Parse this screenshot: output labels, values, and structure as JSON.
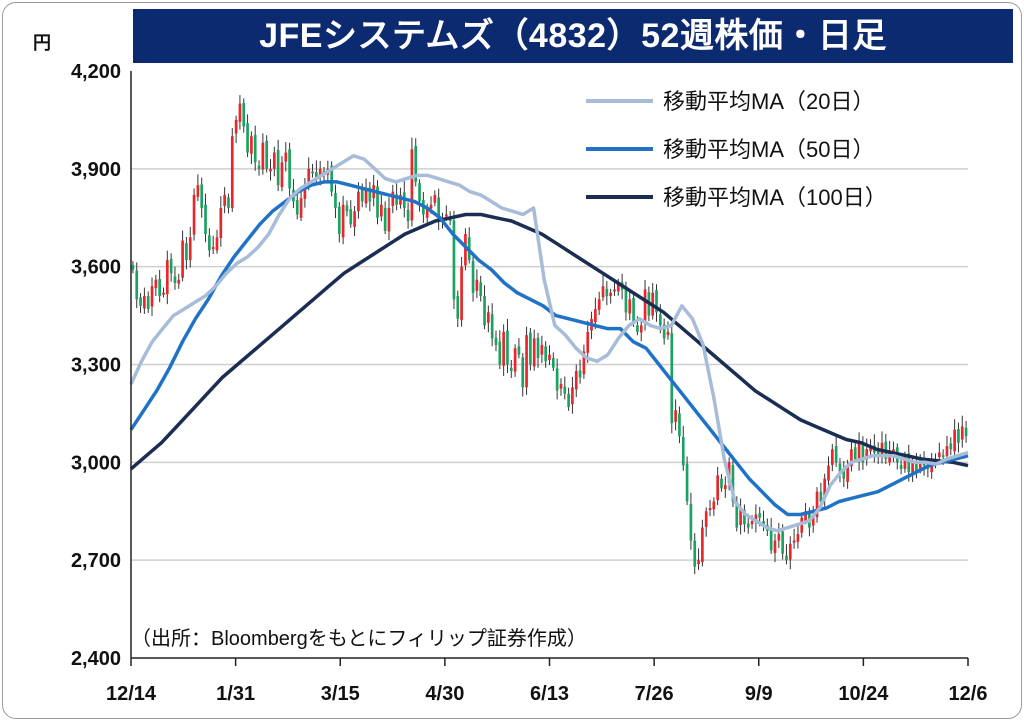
{
  "title": "JFEシステムズ（4832）52週株価・日足",
  "unit_label": "円",
  "source_note": "（出所：Bloombergをもとにフィリップ証券作成）",
  "colors": {
    "title_bg": "#0b2a6f",
    "up": "#e8262b",
    "down": "#1aa262",
    "ma20": "#a7bcd8",
    "ma50": "#1f72c6",
    "ma100": "#1a2d52",
    "grid": "#cfcfcf"
  },
  "chart_data": {
    "type": "candlestick",
    "title": "JFEシステムズ（4832）52週株価・日足",
    "ylabel": "円",
    "ylim": [
      2400,
      4200
    ],
    "yticks": [
      4200,
      3900,
      3600,
      3300,
      3000,
      2700,
      2400
    ],
    "ytick_labels": [
      "4,200",
      "3,900",
      "3,600",
      "3,300",
      "3,000",
      "2,700",
      "2,400"
    ],
    "xticks": [
      "12/14",
      "1/31",
      "3/15",
      "4/30",
      "6/13",
      "7/26",
      "9/9",
      "10/24",
      "12/6"
    ],
    "grid": true,
    "legend_position": "top-right",
    "legend": [
      "移動平均MA（20日）",
      "移動平均MA（50日）",
      "移動平均MA（100日）"
    ],
    "close": [
      3590,
      3500,
      3480,
      3510,
      3470,
      3540,
      3560,
      3510,
      3520,
      3620,
      3580,
      3550,
      3560,
      3680,
      3620,
      3690,
      3820,
      3850,
      3780,
      3700,
      3650,
      3660,
      3690,
      3780,
      3820,
      3780,
      4000,
      4050,
      4100,
      4030,
      3950,
      4000,
      3920,
      3900,
      3980,
      3900,
      3900,
      3950,
      3850,
      3920,
      3950,
      3840,
      3800,
      3760,
      3810,
      3850,
      3900,
      3890,
      3870,
      3900,
      3880,
      3900,
      3830,
      3780,
      3700,
      3790,
      3770,
      3730,
      3770,
      3830,
      3800,
      3840,
      3800,
      3850,
      3750,
      3790,
      3710,
      3780,
      3830,
      3790,
      3820,
      3780,
      3740,
      3960,
      3860,
      3800,
      3760,
      3780,
      3790,
      3820,
      3740,
      3750,
      3760,
      3740,
      3500,
      3440,
      3600,
      3700,
      3620,
      3520,
      3560,
      3510,
      3420,
      3460,
      3380,
      3360,
      3300,
      3400,
      3300,
      3280,
      3350,
      3330,
      3230,
      3390,
      3300,
      3380,
      3320,
      3360,
      3310,
      3330,
      3290,
      3220,
      3240,
      3210,
      3170,
      3230,
      3280,
      3260,
      3340,
      3400,
      3440,
      3470,
      3500,
      3540,
      3510,
      3520,
      3530,
      3550,
      3530,
      3460,
      3500,
      3430,
      3400,
      3420,
      3530,
      3450,
      3520,
      3460,
      3420,
      3380,
      3400,
      3120,
      3160,
      3080,
      2990,
      2880,
      2760,
      2680,
      2700,
      2800,
      2850,
      2860,
      2880,
      2960,
      2920,
      2930,
      3000,
      2880,
      2800,
      2860,
      2810,
      2800,
      2820,
      2840,
      2830,
      2810,
      2790,
      2730,
      2760,
      2780,
      2720,
      2700,
      2750,
      2760,
      2780,
      2830,
      2850,
      2800,
      2840,
      2910,
      2880,
      2950,
      2990,
      3040,
      3000,
      2970,
      2950,
      2990,
      3040,
      3010,
      3060,
      3000,
      3040,
      3050,
      3030,
      3020,
      3060,
      3010,
      3030,
      3040,
      3000,
      2980,
      3020,
      2970,
      3000,
      2970,
      3010,
      2990,
      2980,
      3000,
      3010,
      3030,
      3020,
      3050,
      3040,
      3100,
      3060,
      3110,
      3080
    ],
    "ma20": [
      3240,
      3310,
      3370,
      3410,
      3450,
      3470,
      3490,
      3510,
      3540,
      3580,
      3610,
      3630,
      3660,
      3700,
      3760,
      3810,
      3840,
      3860,
      3880,
      3900,
      3920,
      3940,
      3930,
      3900,
      3870,
      3860,
      3870,
      3880,
      3880,
      3870,
      3860,
      3850,
      3830,
      3820,
      3800,
      3780,
      3770,
      3760,
      3780,
      3560,
      3420,
      3390,
      3350,
      3320,
      3310,
      3330,
      3380,
      3420,
      3440,
      3420,
      3410,
      3420,
      3480,
      3440,
      3360,
      3200,
      3010,
      2880,
      2840,
      2820,
      2800,
      2790,
      2800,
      2810,
      2820,
      2860,
      2930,
      2970,
      3000,
      3010,
      3020,
      3020,
      3020,
      3010,
      3000,
      3000,
      2995,
      3010,
      3020,
      3030
    ],
    "ma50": [
      3100,
      3160,
      3220,
      3290,
      3370,
      3440,
      3500,
      3570,
      3630,
      3680,
      3730,
      3770,
      3800,
      3830,
      3850,
      3860,
      3860,
      3850,
      3840,
      3830,
      3820,
      3810,
      3800,
      3780,
      3750,
      3700,
      3660,
      3620,
      3590,
      3550,
      3520,
      3500,
      3480,
      3450,
      3440,
      3430,
      3420,
      3410,
      3410,
      3370,
      3350,
      3300,
      3250,
      3200,
      3150,
      3100,
      3050,
      3000,
      2950,
      2910,
      2870,
      2840,
      2840,
      2850,
      2860,
      2880,
      2890,
      2900,
      2910,
      2930,
      2950,
      2970,
      2990,
      3000,
      3010,
      3020
    ],
    "ma100": [
      2980,
      3020,
      3060,
      3110,
      3160,
      3210,
      3260,
      3300,
      3340,
      3380,
      3420,
      3460,
      3500,
      3540,
      3580,
      3610,
      3640,
      3670,
      3700,
      3720,
      3740,
      3750,
      3760,
      3760,
      3750,
      3740,
      3720,
      3700,
      3670,
      3640,
      3610,
      3580,
      3550,
      3520,
      3490,
      3460,
      3420,
      3380,
      3340,
      3300,
      3260,
      3220,
      3190,
      3160,
      3130,
      3110,
      3090,
      3070,
      3060,
      3040,
      3030,
      3020,
      3010,
      3005,
      3000,
      2990
    ]
  }
}
